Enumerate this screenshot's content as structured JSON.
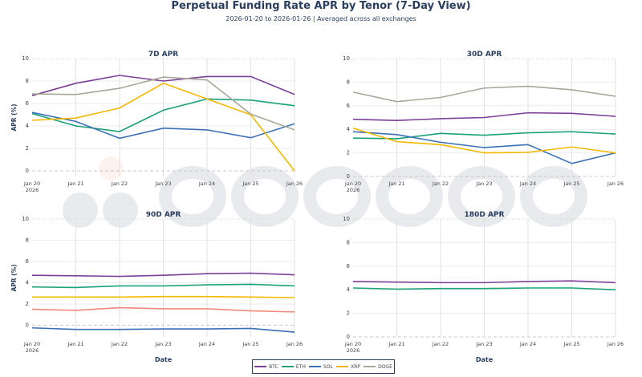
{
  "title": "Perpetual Funding Rate APR by Tenor (7-Day View)",
  "subtitle": "2026-01-20 to 2026-01-26 | Averaged across all exchanges",
  "watermark": "amberdata",
  "legend": [
    {
      "name": "BTC",
      "color": "#7b3f98"
    },
    {
      "name": "ETH",
      "color": "#1aa37a"
    },
    {
      "name": "SOL",
      "color": "#3b6fb6"
    },
    {
      "name": "XRP",
      "color": "#f5b800"
    },
    {
      "name": "DOGE",
      "color": "#a8a89a"
    }
  ],
  "chart_data": [
    {
      "type": "line",
      "title": "7D APR",
      "ylabel": "APR (%)",
      "xlabel": "",
      "ylim": [
        -0.5,
        10
      ],
      "yticks": [
        0,
        2,
        4,
        6,
        8,
        10
      ],
      "categories": [
        "Jan 20\n2026",
        "Jan 21",
        "Jan 22",
        "Jan 23",
        "Jan 24",
        "Jan 25",
        "Jan 26"
      ],
      "series": [
        {
          "name": "BTC",
          "color": "#7b3f98",
          "values": [
            6.7,
            7.8,
            8.5,
            8.0,
            8.4,
            8.4,
            6.8
          ]
        },
        {
          "name": "ETH",
          "color": "#1aa37a",
          "values": [
            5.1,
            4.0,
            3.5,
            5.4,
            6.4,
            6.3,
            5.8
          ]
        },
        {
          "name": "SOL",
          "color": "#3b6fb6",
          "values": [
            5.2,
            4.4,
            2.9,
            3.8,
            3.65,
            2.95,
            4.2
          ]
        },
        {
          "name": "XRP",
          "color": "#f5b800",
          "values": [
            4.5,
            4.7,
            5.6,
            7.8,
            6.4,
            5.0,
            0.0
          ]
        },
        {
          "name": "DOGE",
          "color": "#a8a89a",
          "values": [
            6.85,
            6.8,
            7.35,
            8.35,
            8.1,
            5.05,
            3.65
          ]
        }
      ]
    },
    {
      "type": "line",
      "title": "30D APR",
      "ylabel": "",
      "xlabel": "",
      "ylim": [
        0,
        10
      ],
      "yticks": [
        0,
        2,
        4,
        6,
        8,
        10
      ],
      "categories": [
        "Jan 20\n2026",
        "Jan 21",
        "Jan 22",
        "Jan 23",
        "Jan 24",
        "Jan 25",
        "Jan 26"
      ],
      "series": [
        {
          "name": "BTC",
          "color": "#7b3f98",
          "values": [
            4.85,
            4.75,
            4.9,
            5.0,
            5.4,
            5.35,
            5.1
          ]
        },
        {
          "name": "ETH",
          "color": "#1aa37a",
          "values": [
            3.25,
            3.2,
            3.65,
            3.5,
            3.7,
            3.8,
            3.6
          ]
        },
        {
          "name": "SOL",
          "color": "#3b6fb6",
          "values": [
            3.8,
            3.55,
            2.9,
            2.45,
            2.7,
            1.1,
            2.0
          ]
        },
        {
          "name": "XRP",
          "color": "#f5b800",
          "values": [
            4.1,
            2.95,
            2.7,
            2.0,
            2.05,
            2.5,
            2.0
          ]
        },
        {
          "name": "DOGE",
          "color": "#a8a89a",
          "values": [
            7.15,
            6.35,
            6.7,
            7.5,
            7.65,
            7.35,
            6.8
          ]
        }
      ]
    },
    {
      "type": "line",
      "title": "90D APR",
      "ylabel": "APR (%)",
      "xlabel": "Date",
      "ylim": [
        -1.1,
        10
      ],
      "yticks": [
        0,
        2,
        4,
        6,
        8,
        10
      ],
      "categories": [
        "Jan 20\n2026",
        "Jan 21",
        "Jan 22",
        "Jan 23",
        "Jan 24",
        "Jan 25",
        "Jan 26"
      ],
      "series": [
        {
          "name": "BTC",
          "color": "#7b3f98",
          "values": [
            4.7,
            4.65,
            4.6,
            4.7,
            4.85,
            4.9,
            4.75
          ]
        },
        {
          "name": "ETH",
          "color": "#1aa37a",
          "values": [
            3.6,
            3.55,
            3.7,
            3.7,
            3.8,
            3.85,
            3.7
          ]
        },
        {
          "name": "XRP",
          "color": "#f5b800",
          "values": [
            2.65,
            2.65,
            2.65,
            2.7,
            2.7,
            2.65,
            2.6
          ]
        },
        {
          "color": "#f08a7a",
          "values": [
            1.5,
            1.4,
            1.65,
            1.55,
            1.55,
            1.35,
            1.25
          ]
        },
        {
          "name": "SOL",
          "color": "#3b6fb6",
          "values": [
            -0.25,
            -0.4,
            -0.4,
            -0.35,
            -0.35,
            -0.3,
            -0.65
          ]
        }
      ]
    },
    {
      "type": "line",
      "title": "180D APR",
      "ylabel": "",
      "xlabel": "Date",
      "ylim": [
        0,
        10
      ],
      "yticks": [
        0,
        2,
        4,
        6,
        8,
        10
      ],
      "categories": [
        "Jan 20\n2026",
        "Jan 21",
        "Jan 22",
        "Jan 23",
        "Jan 24",
        "Jan 25",
        "Jan 26"
      ],
      "series": [
        {
          "name": "BTC",
          "color": "#7b3f98",
          "values": [
            4.7,
            4.65,
            4.6,
            4.6,
            4.7,
            4.75,
            4.6
          ]
        },
        {
          "name": "ETH",
          "color": "#1aa37a",
          "values": [
            4.15,
            4.05,
            4.1,
            4.1,
            4.15,
            4.15,
            4.0
          ]
        }
      ]
    }
  ]
}
